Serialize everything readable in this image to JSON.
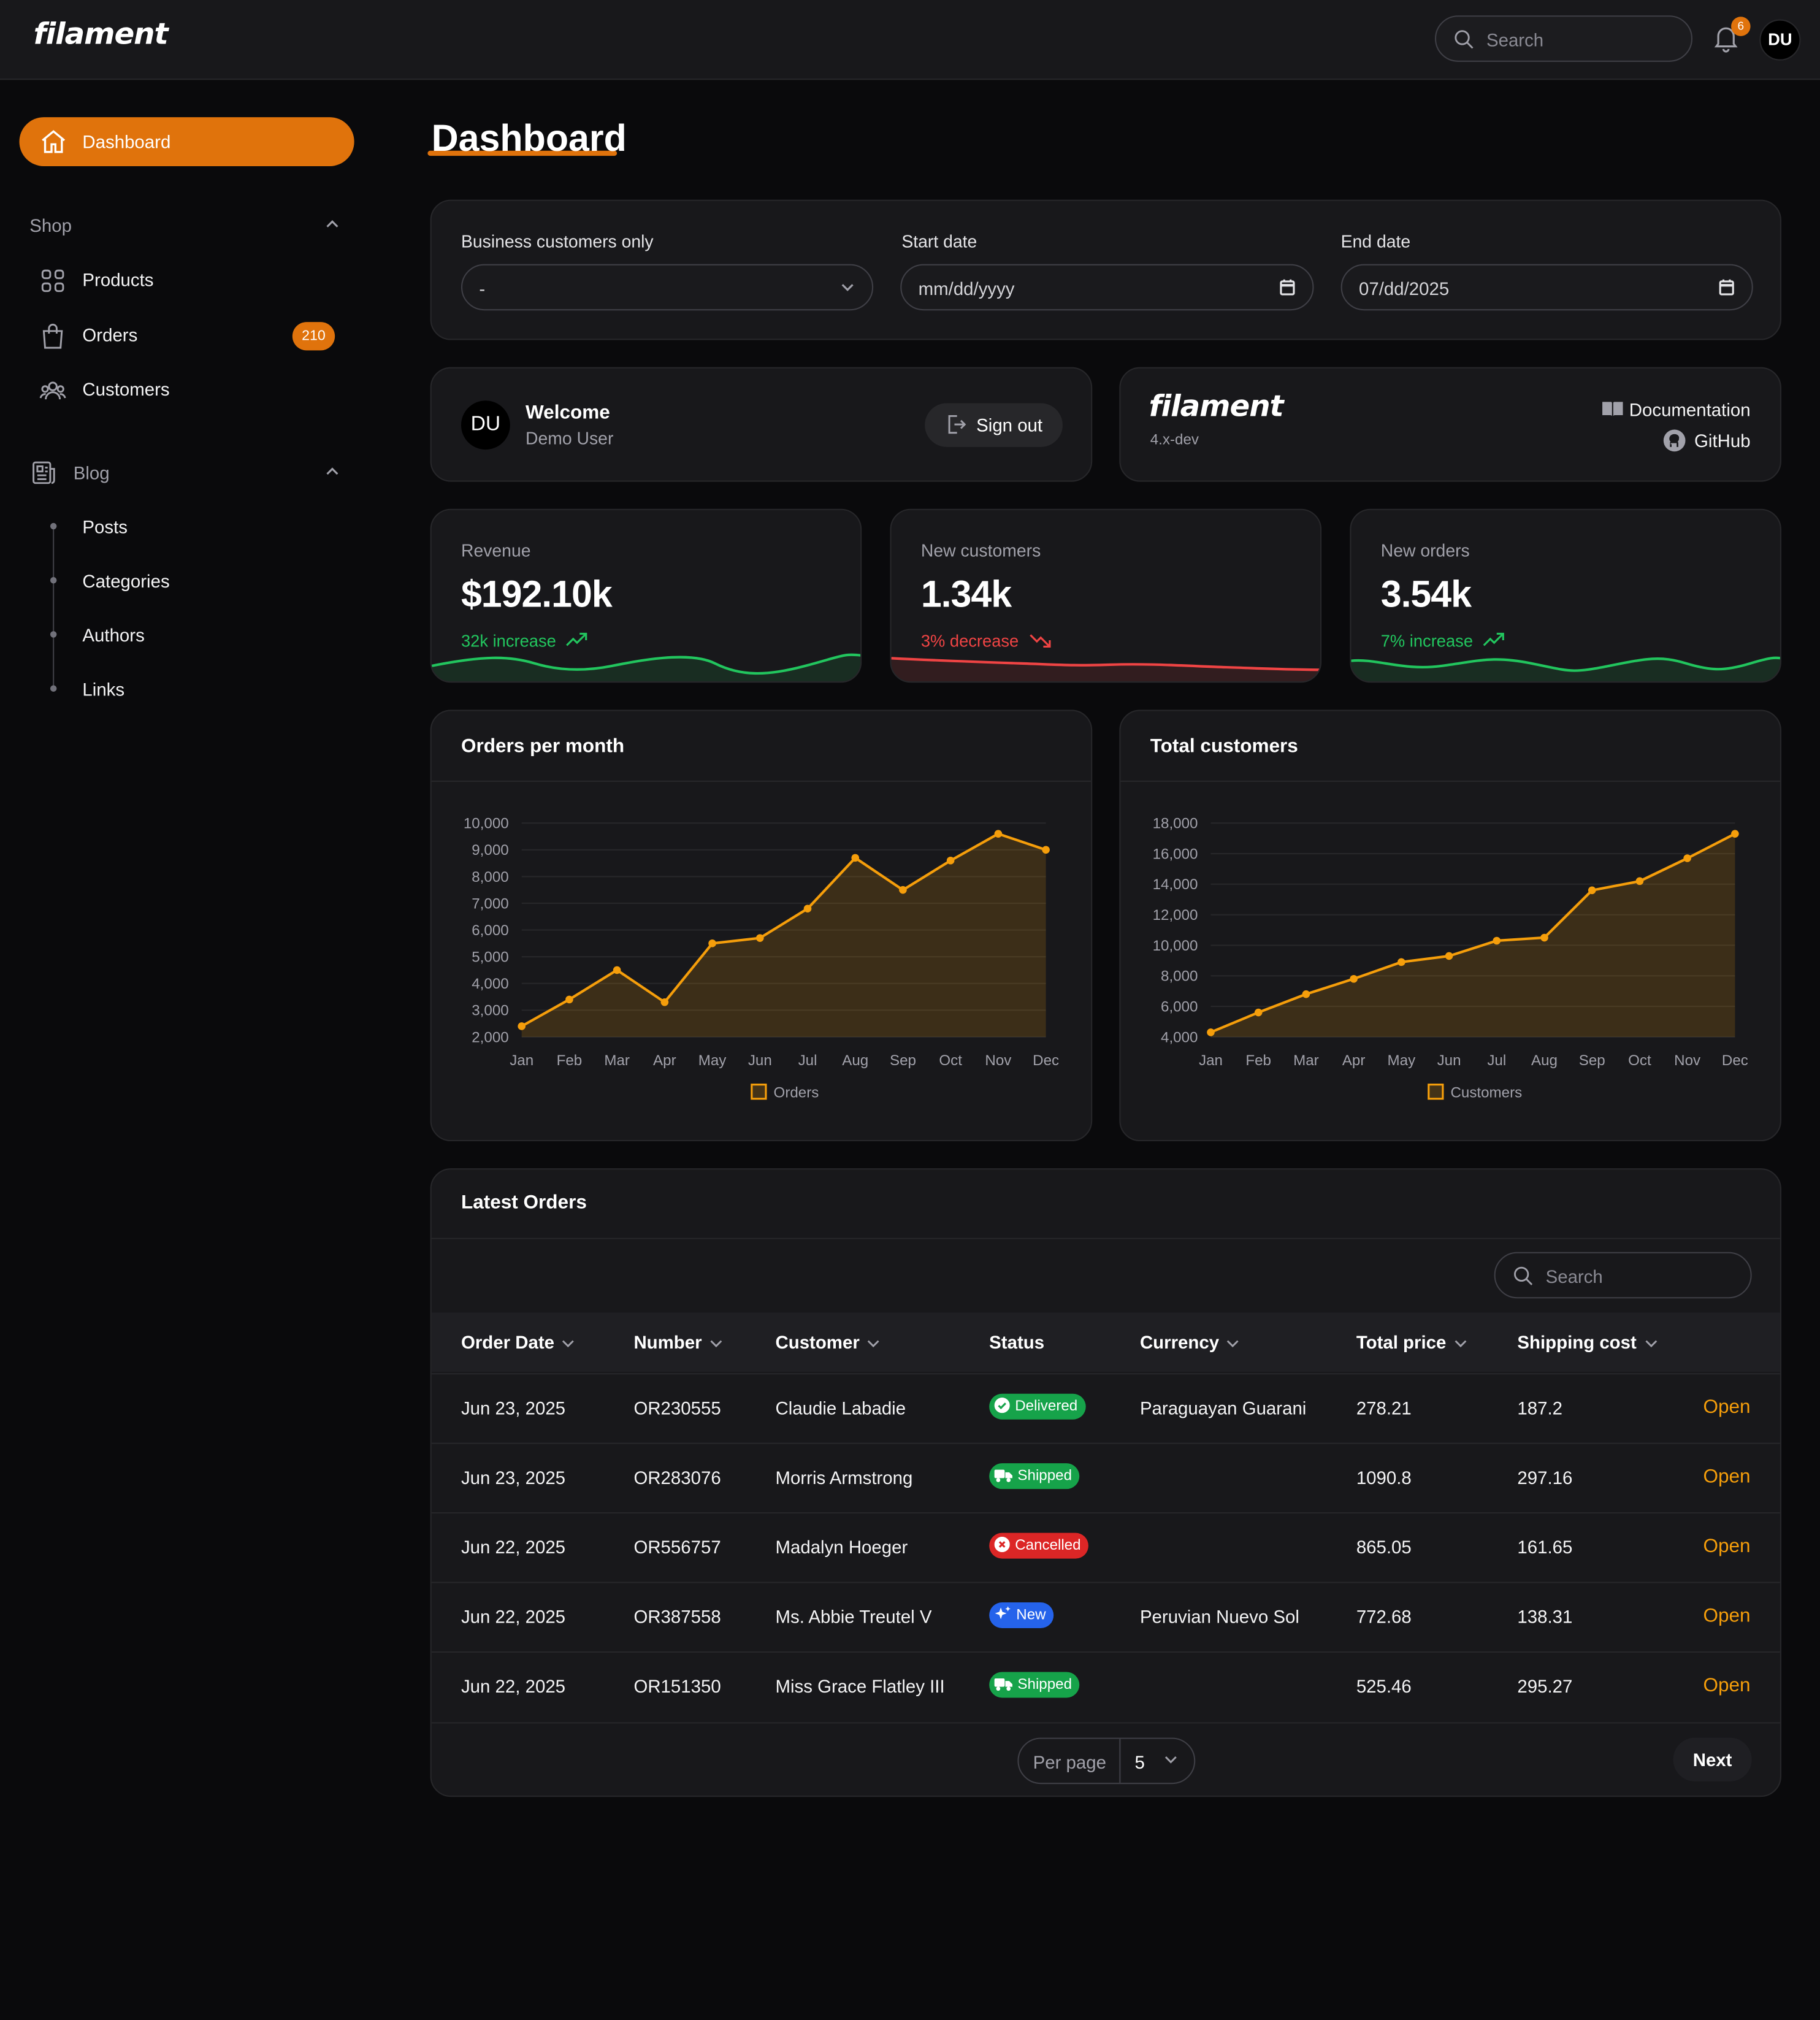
{
  "topbar": {
    "logo": "filament",
    "search_placeholder": "Search",
    "notification_count": "6",
    "user_initials": "DU"
  },
  "sidebar": {
    "dashboard": "Dashboard",
    "shop_group": "Shop",
    "shop_items": [
      {
        "label": "Products",
        "icon": "grid-icon"
      },
      {
        "label": "Orders",
        "icon": "shopping-bag-icon",
        "badge": "210"
      },
      {
        "label": "Customers",
        "icon": "users-icon"
      }
    ],
    "blog_group": "Blog",
    "blog_items": [
      "Posts",
      "Categories",
      "Authors",
      "Links"
    ]
  },
  "page": {
    "title": "Dashboard"
  },
  "filters": {
    "business_label": "Business customers only",
    "business_value": "-",
    "start_label": "Start date",
    "start_value": "mm/dd/yyyy",
    "end_label": "End date",
    "end_value": "07/dd/2025"
  },
  "welcome": {
    "initials": "DU",
    "title": "Welcome",
    "subtitle": "Demo User",
    "signout": "Sign out"
  },
  "filament_info": {
    "logo": "filament",
    "version": "4.x-dev",
    "docs": "Documentation",
    "github": "GitHub"
  },
  "stats": [
    {
      "label": "Revenue",
      "value": "$192.10k",
      "delta": "32k increase",
      "trend": "up",
      "color": "#22c55e"
    },
    {
      "label": "New customers",
      "value": "1.34k",
      "delta": "3% decrease",
      "trend": "down",
      "color": "#ef4444"
    },
    {
      "label": "New orders",
      "value": "3.54k",
      "delta": "7% increase",
      "trend": "up",
      "color": "#22c55e"
    }
  ],
  "chart_data": [
    {
      "type": "line",
      "title": "Orders per month",
      "categories": [
        "Jan",
        "Feb",
        "Mar",
        "Apr",
        "May",
        "Jun",
        "Jul",
        "Aug",
        "Sep",
        "Oct",
        "Nov",
        "Dec"
      ],
      "series": [
        {
          "name": "Orders",
          "values": [
            2400,
            3400,
            4500,
            3300,
            5500,
            5700,
            6800,
            8700,
            7500,
            8600,
            9600,
            9000
          ]
        }
      ],
      "yticks": [
        "2,000",
        "3,000",
        "4,000",
        "5,000",
        "6,000",
        "7,000",
        "8,000",
        "9,000",
        "10,000"
      ],
      "ylim": [
        2000,
        10000
      ],
      "color": "#f59e0b",
      "legend": "bottom"
    },
    {
      "type": "line",
      "title": "Total customers",
      "categories": [
        "Jan",
        "Feb",
        "Mar",
        "Apr",
        "May",
        "Jun",
        "Jul",
        "Aug",
        "Sep",
        "Oct",
        "Nov",
        "Dec"
      ],
      "series": [
        {
          "name": "Customers",
          "values": [
            4300,
            5600,
            6800,
            7800,
            8900,
            9300,
            10300,
            10500,
            13600,
            14200,
            15700,
            17300
          ]
        }
      ],
      "yticks": [
        "4,000",
        "6,000",
        "8,000",
        "10,000",
        "12,000",
        "14,000",
        "16,000",
        "18,000"
      ],
      "ylim": [
        4000,
        18000
      ],
      "color": "#f59e0b",
      "legend": "bottom"
    }
  ],
  "orders": {
    "title": "Latest Orders",
    "search_placeholder": "Search",
    "columns": [
      "Order Date",
      "Number",
      "Customer",
      "Status",
      "Currency",
      "Total price",
      "Shipping cost"
    ],
    "rows": [
      {
        "date": "Jun 23, 2025",
        "number": "OR230555",
        "customer": "Claudie Labadie",
        "status": "Delivered",
        "currency": "Paraguayan Guarani",
        "total": "278.21",
        "shipping": "187.2",
        "action": "Open"
      },
      {
        "date": "Jun 23, 2025",
        "number": "OR283076",
        "customer": "Morris Armstrong",
        "status": "Shipped",
        "currency": "",
        "total": "1090.8",
        "shipping": "297.16",
        "action": "Open"
      },
      {
        "date": "Jun 22, 2025",
        "number": "OR556757",
        "customer": "Madalyn Hoeger",
        "status": "Cancelled",
        "currency": "",
        "total": "865.05",
        "shipping": "161.65",
        "action": "Open"
      },
      {
        "date": "Jun 22, 2025",
        "number": "OR387558",
        "customer": "Ms. Abbie Treutel V",
        "status": "New",
        "currency": "Peruvian Nuevo Sol",
        "total": "772.68",
        "shipping": "138.31",
        "action": "Open"
      },
      {
        "date": "Jun 22, 2025",
        "number": "OR151350",
        "customer": "Miss Grace Flatley III",
        "status": "Shipped",
        "currency": "",
        "total": "525.46",
        "shipping": "295.27",
        "action": "Open"
      }
    ],
    "status_colors": {
      "Delivered": "#16a34a",
      "Shipped": "#16a34a",
      "Cancelled": "#dc2626",
      "New": "#2563eb"
    },
    "per_page_label": "Per page",
    "per_page_value": "5",
    "next": "Next"
  }
}
